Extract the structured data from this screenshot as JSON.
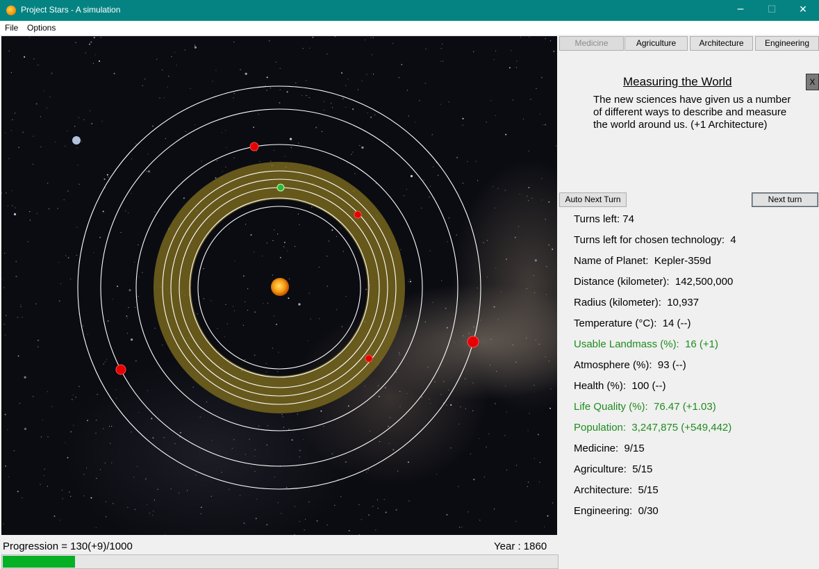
{
  "window": {
    "title": "Project Stars - A simulation",
    "icon": "star-app-icon",
    "controls": [
      "─",
      "☐",
      "✕"
    ]
  },
  "menu": {
    "file": "File",
    "options": "Options"
  },
  "tabs": [
    {
      "label": "Medicine",
      "active": true
    },
    {
      "label": "Agriculture",
      "active": false
    },
    {
      "label": "Architecture",
      "active": false
    },
    {
      "label": "Engineering",
      "active": false
    }
  ],
  "event": {
    "title": "Measuring the World",
    "description": "The new sciences have given us a number of different ways to describe and measure the world around us. (+1 Architecture)",
    "close_label": "X"
  },
  "buttons": {
    "auto_next": "Auto Next Turn",
    "next": "Next turn"
  },
  "stats": [
    {
      "text": "Turns left: 74",
      "green": false
    },
    {
      "text": "Turns left for chosen technology:  4",
      "green": false
    },
    {
      "text": "Name of Planet:  Kepler-359d",
      "green": false
    },
    {
      "text": "Distance (kilometer):  142,500,000",
      "green": false
    },
    {
      "text": "Radius (kilometer):  10,937",
      "green": false
    },
    {
      "text": "Temperature (°C):  14 (--)",
      "green": false
    },
    {
      "text": "Usable Landmass (%):  16 (+1)",
      "green": true
    },
    {
      "text": "Atmosphere (%):  93 (--)",
      "green": false
    },
    {
      "text": "Health (%):  100 (--)",
      "green": false
    },
    {
      "text": "Life Quality (%):  76.47 (+1.03)",
      "green": true
    },
    {
      "text": "Population:  3,247,875 (+549,442)",
      "green": true
    },
    {
      "text": "Medicine:  9/15",
      "green": false
    },
    {
      "text": "Agriculture:  5/15",
      "green": false
    },
    {
      "text": "Architecture:  5/15",
      "green": false
    },
    {
      "text": "Engineering:  0/30",
      "green": false
    }
  ],
  "progress": {
    "label": "Progression = 130(+9)/1000",
    "value": 130,
    "max": 1000,
    "fill_color": "#06b025"
  },
  "year": "Year : 1860",
  "colors": {
    "titlebar": "#058383",
    "green_stat": "#1e8c1e",
    "habitable_zone": "#8a7a22",
    "planet": "#e60000",
    "home_planet": "#33b533",
    "sun": "#f08a00"
  }
}
